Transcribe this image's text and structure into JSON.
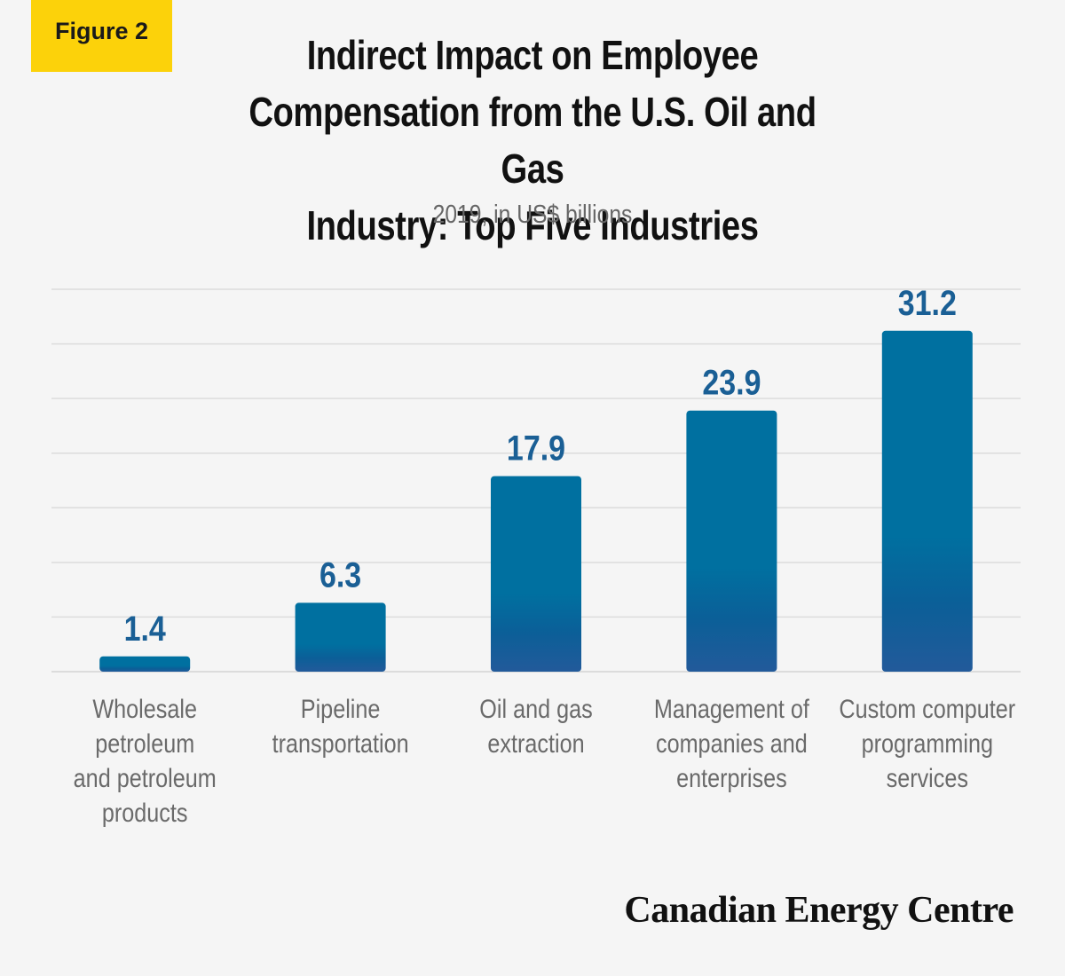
{
  "figure_label": "Figure 2",
  "brand": "Canadian Energy Centre",
  "colors": {
    "badge": "#fcd20a",
    "bar_top": "#0070a0",
    "bar_bottom": "#225a9a",
    "value_label": "#1a5f95",
    "category_label": "#6a6a6a",
    "grid": "#dcdcdc"
  },
  "chart_data": {
    "type": "bar",
    "title": "Indirect Impact on Employee Compensation from the U.S. Oil and Gas Industry: Top Five Industries",
    "title_lines": [
      "Indirect Impact on Employee",
      "Compensation from the U.S. Oil and Gas",
      "Industry: Top Five Industries"
    ],
    "subtitle": "2019, in US$ billions",
    "categories": [
      "Wholesale petroleum and petroleum products",
      "Pipeline transportation",
      "Oil and gas extraction",
      "Management of companies and enterprises",
      "Custom computer programming services"
    ],
    "category_lines": [
      [
        "Wholesale",
        "petroleum",
        "and petroleum",
        "products"
      ],
      [
        "Pipeline",
        "transportation"
      ],
      [
        "Oil and gas",
        "extraction"
      ],
      [
        "Management of",
        "companies and",
        "enterprises"
      ],
      [
        "Custom computer",
        "programming",
        "services"
      ]
    ],
    "values": [
      1.4,
      6.3,
      17.9,
      23.9,
      31.2
    ],
    "value_labels": [
      "1.4",
      "6.3",
      "17.9",
      "23.9",
      "31.2"
    ],
    "ylim": [
      0,
      35
    ],
    "grid": true
  }
}
